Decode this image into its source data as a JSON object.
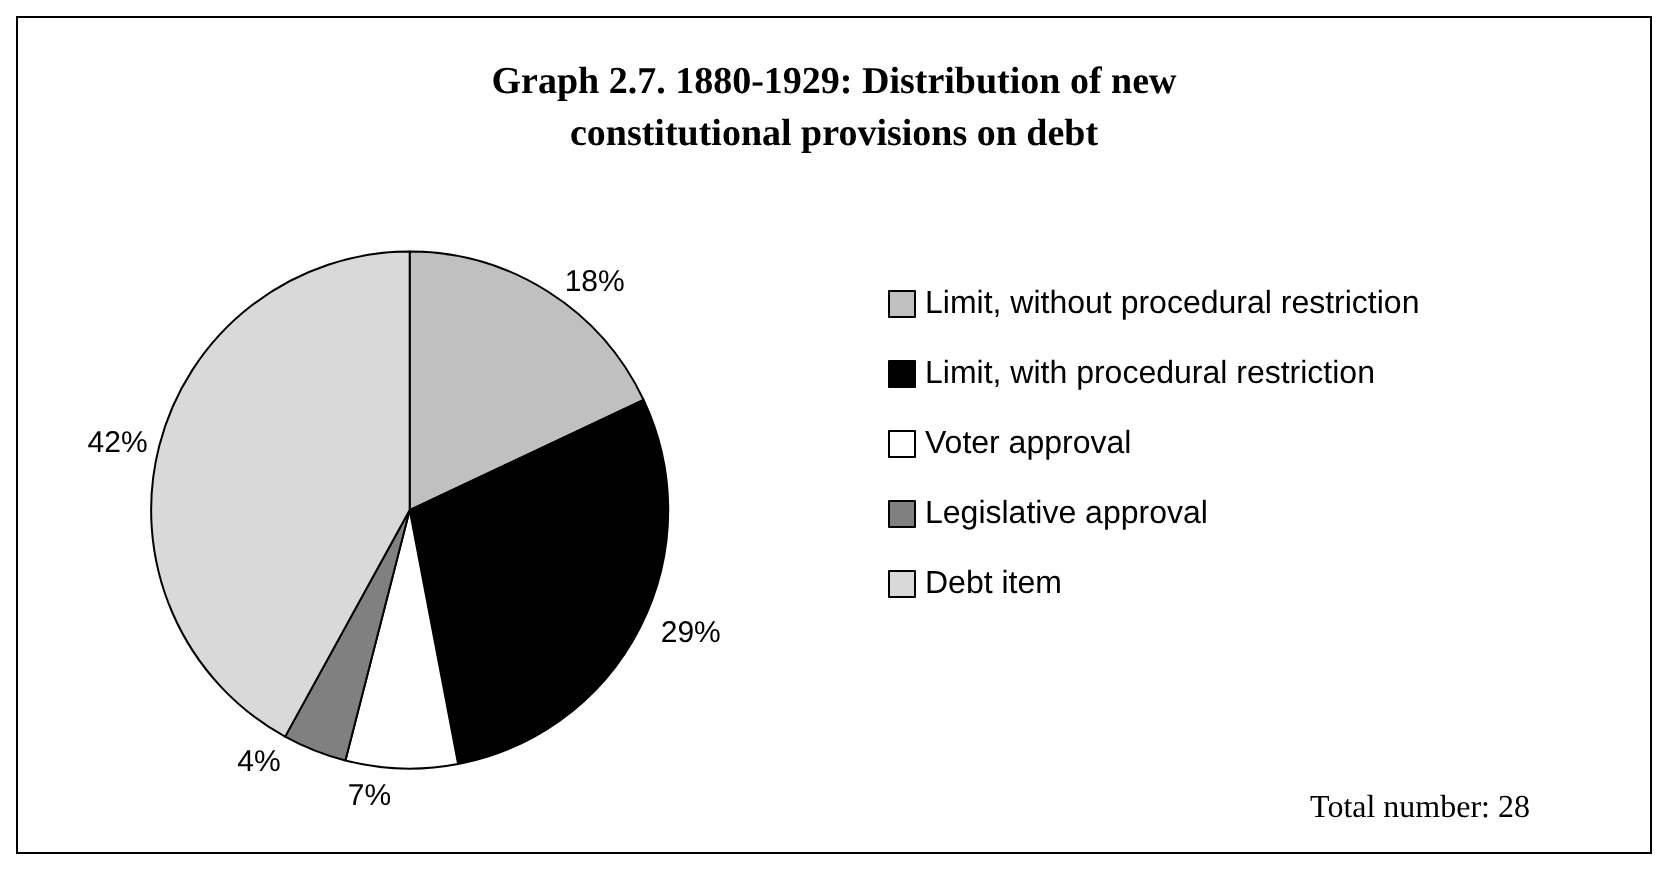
{
  "chart_data": {
    "type": "pie",
    "title": "Graph 2.7. 1880-1929: Distribution of new\nconstitutional provisions on debt",
    "categories": [
      "Limit, without procedural restriction",
      "Limit, with procedural restriction",
      "Voter approval",
      "Legislative approval",
      "Debt item"
    ],
    "values": [
      18,
      29,
      7,
      4,
      42
    ],
    "value_labels": [
      "18%",
      "29%",
      "7%",
      "4%",
      "42%"
    ],
    "colors": [
      "#c0c0c0",
      "#000000",
      "#ffffff",
      "#808080",
      "#d9d9d9"
    ],
    "legend": "right",
    "annotations": [
      "Total number: 28"
    ]
  }
}
